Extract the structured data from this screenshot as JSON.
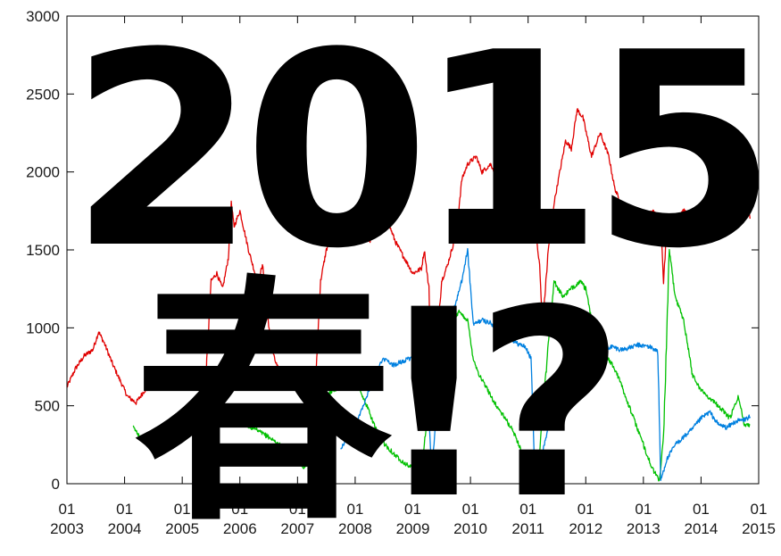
{
  "headline": {
    "line1": "2015",
    "line2": "春!?"
  },
  "chart_data": {
    "type": "line",
    "xlabel": "",
    "ylabel": "",
    "xlim": [
      2003.0,
      2015.0
    ],
    "ylim": [
      0,
      3000
    ],
    "y_ticks": [
      0,
      500,
      1000,
      1500,
      2000,
      2500,
      3000
    ],
    "x_ticks": [
      {
        "value": 2003,
        "label": "01\n2003"
      },
      {
        "value": 2004,
        "label": "01\n2004"
      },
      {
        "value": 2005,
        "label": "01\n2005"
      },
      {
        "value": 2006,
        "label": "01\n2006"
      },
      {
        "value": 2007,
        "label": "01\n2007"
      },
      {
        "value": 2008,
        "label": "01\n2008"
      },
      {
        "value": 2009,
        "label": "01\n2009"
      },
      {
        "value": 2010,
        "label": "01\n2010"
      },
      {
        "value": 2011,
        "label": "01\n2011"
      },
      {
        "value": 2012,
        "label": "01\n2012"
      },
      {
        "value": 2013,
        "label": "01\n2013"
      },
      {
        "value": 2014,
        "label": "01\n2014"
      },
      {
        "value": 2015,
        "label": "01\n2015"
      }
    ],
    "grid": false,
    "legend": "none",
    "series": [
      {
        "color": "#e00000",
        "points": [
          [
            2003.0,
            620
          ],
          [
            2003.15,
            740
          ],
          [
            2003.3,
            820
          ],
          [
            2003.45,
            860
          ],
          [
            2003.55,
            975
          ],
          [
            2003.65,
            900
          ],
          [
            2003.8,
            760
          ],
          [
            2003.95,
            640
          ],
          [
            2004.05,
            560
          ],
          [
            2004.2,
            520
          ],
          [
            2004.35,
            600
          ],
          [
            2004.5,
            620
          ],
          [
            2004.65,
            640
          ],
          [
            2004.8,
            700
          ],
          [
            2004.95,
            680
          ],
          [
            2005.1,
            660
          ],
          [
            2005.25,
            640
          ],
          [
            2005.4,
            600
          ],
          [
            2005.5,
            1300
          ],
          [
            2005.6,
            1350
          ],
          [
            2005.7,
            1250
          ],
          [
            2005.8,
            1450
          ],
          [
            2005.85,
            1800
          ],
          [
            2005.9,
            1650
          ],
          [
            2006.0,
            1750
          ],
          [
            2006.15,
            1500
          ],
          [
            2006.3,
            1300
          ],
          [
            2006.4,
            1400
          ],
          [
            2006.5,
            1000
          ],
          [
            2006.6,
            800
          ],
          [
            2006.75,
            650
          ],
          [
            2006.9,
            620
          ],
          [
            2007.05,
            600
          ],
          [
            2007.2,
            550
          ],
          [
            2007.3,
            560
          ],
          [
            2007.4,
            1300
          ],
          [
            2007.5,
            1500
          ],
          [
            2007.6,
            1600
          ],
          [
            2007.7,
            1650
          ],
          [
            2007.85,
            1620
          ],
          [
            2008.0,
            1600
          ],
          [
            2008.1,
            1680
          ],
          [
            2008.25,
            1550
          ],
          [
            2008.4,
            1750
          ],
          [
            2008.55,
            1700
          ],
          [
            2008.7,
            1550
          ],
          [
            2008.85,
            1450
          ],
          [
            2009.0,
            1350
          ],
          [
            2009.15,
            1380
          ],
          [
            2009.2,
            1500
          ],
          [
            2009.28,
            1250
          ],
          [
            2009.32,
            720
          ],
          [
            2009.38,
            760
          ],
          [
            2009.5,
            1300
          ],
          [
            2009.6,
            1400
          ],
          [
            2009.75,
            1600
          ],
          [
            2009.85,
            1950
          ],
          [
            2009.95,
            2050
          ],
          [
            2010.1,
            2100
          ],
          [
            2010.2,
            2000
          ],
          [
            2010.35,
            2050
          ],
          [
            2010.5,
            1950
          ],
          [
            2010.65,
            1880
          ],
          [
            2010.8,
            1800
          ],
          [
            2010.95,
            1700
          ],
          [
            2011.05,
            1600
          ],
          [
            2011.15,
            1550
          ],
          [
            2011.2,
            1400
          ],
          [
            2011.25,
            1000
          ],
          [
            2011.35,
            1500
          ],
          [
            2011.45,
            1800
          ],
          [
            2011.55,
            2000
          ],
          [
            2011.65,
            2200
          ],
          [
            2011.75,
            2150
          ],
          [
            2011.85,
            2400
          ],
          [
            2011.95,
            2350
          ],
          [
            2012.1,
            2100
          ],
          [
            2012.25,
            2250
          ],
          [
            2012.4,
            2100
          ],
          [
            2012.5,
            1900
          ],
          [
            2012.6,
            1800
          ],
          [
            2012.7,
            1750
          ],
          [
            2012.85,
            1650
          ],
          [
            2013.0,
            1700
          ],
          [
            2013.15,
            1750
          ],
          [
            2013.3,
            1700
          ],
          [
            2013.35,
            1300
          ],
          [
            2013.4,
            1600
          ],
          [
            2013.5,
            1700
          ],
          [
            2013.7,
            1750
          ],
          [
            2013.9,
            1700
          ],
          [
            2014.05,
            1750
          ],
          [
            2014.2,
            1800
          ],
          [
            2014.35,
            1600
          ],
          [
            2014.5,
            1650
          ],
          [
            2014.6,
            1750
          ],
          [
            2014.7,
            1900
          ],
          [
            2014.8,
            1800
          ],
          [
            2014.85,
            1700
          ]
        ]
      },
      {
        "color": "#00c000",
        "points": [
          [
            2004.15,
            360
          ],
          [
            2004.3,
            290
          ],
          [
            2004.45,
            240
          ],
          [
            2004.6,
            290
          ],
          [
            2004.75,
            230
          ],
          [
            2004.9,
            260
          ],
          [
            2005.1,
            330
          ],
          [
            2005.3,
            380
          ],
          [
            2005.5,
            420
          ],
          [
            2005.7,
            440
          ],
          [
            2005.9,
            400
          ],
          [
            2006.1,
            380
          ],
          [
            2006.3,
            340
          ],
          [
            2006.5,
            300
          ],
          [
            2006.65,
            260
          ],
          [
            2006.8,
            220
          ],
          [
            2006.95,
            170
          ],
          [
            2007.1,
            110
          ],
          [
            2007.2,
            130
          ],
          [
            2007.3,
            400
          ],
          [
            2007.45,
            520
          ],
          [
            2007.6,
            600
          ],
          [
            2007.75,
            620
          ],
          [
            2007.9,
            640
          ],
          [
            2008.05,
            620
          ],
          [
            2008.2,
            500
          ],
          [
            2008.35,
            360
          ],
          [
            2008.5,
            260
          ],
          [
            2008.7,
            180
          ],
          [
            2008.9,
            120
          ],
          [
            2009.05,
            100
          ],
          [
            2009.15,
            90
          ],
          [
            2009.25,
            420
          ],
          [
            2009.35,
            620
          ],
          [
            2009.5,
            900
          ],
          [
            2009.65,
            1000
          ],
          [
            2009.8,
            1100
          ],
          [
            2009.95,
            1050
          ],
          [
            2010.05,
            800
          ],
          [
            2010.15,
            700
          ],
          [
            2010.3,
            600
          ],
          [
            2010.45,
            500
          ],
          [
            2010.6,
            420
          ],
          [
            2010.75,
            330
          ],
          [
            2010.9,
            200
          ],
          [
            2011.0,
            100
          ],
          [
            2011.1,
            20
          ],
          [
            2011.2,
            200
          ],
          [
            2011.35,
            900
          ],
          [
            2011.45,
            1300
          ],
          [
            2011.6,
            1200
          ],
          [
            2011.75,
            1250
          ],
          [
            2011.9,
            1300
          ],
          [
            2012.0,
            1250
          ],
          [
            2012.1,
            1050
          ],
          [
            2012.25,
            900
          ],
          [
            2012.4,
            800
          ],
          [
            2012.55,
            700
          ],
          [
            2012.7,
            550
          ],
          [
            2012.85,
            400
          ],
          [
            2013.0,
            250
          ],
          [
            2013.15,
            100
          ],
          [
            2013.28,
            20
          ],
          [
            2013.35,
            300
          ],
          [
            2013.45,
            1500
          ],
          [
            2013.55,
            1200
          ],
          [
            2013.7,
            1050
          ],
          [
            2013.85,
            700
          ],
          [
            2014.0,
            600
          ],
          [
            2014.15,
            550
          ],
          [
            2014.3,
            500
          ],
          [
            2014.5,
            420
          ],
          [
            2014.65,
            560
          ],
          [
            2014.75,
            380
          ],
          [
            2014.85,
            380
          ]
        ]
      },
      {
        "color": "#0080e0",
        "points": [
          [
            2007.75,
            230
          ],
          [
            2007.9,
            300
          ],
          [
            2008.05,
            420
          ],
          [
            2008.2,
            560
          ],
          [
            2008.35,
            720
          ],
          [
            2008.5,
            800
          ],
          [
            2008.65,
            760
          ],
          [
            2008.8,
            780
          ],
          [
            2009.0,
            810
          ],
          [
            2009.15,
            830
          ],
          [
            2009.25,
            700
          ],
          [
            2009.32,
            100
          ],
          [
            2009.4,
            380
          ],
          [
            2009.55,
            720
          ],
          [
            2009.7,
            1100
          ],
          [
            2009.85,
            1300
          ],
          [
            2009.95,
            1500
          ],
          [
            2010.05,
            1020
          ],
          [
            2010.2,
            1050
          ],
          [
            2010.35,
            1030
          ],
          [
            2010.5,
            950
          ],
          [
            2010.65,
            950
          ],
          [
            2010.8,
            900
          ],
          [
            2010.95,
            880
          ],
          [
            2011.05,
            800
          ],
          [
            2011.12,
            50
          ],
          [
            2011.25,
            200
          ],
          [
            2011.4,
            450
          ],
          [
            2011.55,
            580
          ],
          [
            2011.7,
            620
          ],
          [
            2011.85,
            700
          ],
          [
            2012.0,
            800
          ],
          [
            2012.15,
            830
          ],
          [
            2012.3,
            860
          ],
          [
            2012.45,
            880
          ],
          [
            2012.6,
            860
          ],
          [
            2012.75,
            870
          ],
          [
            2012.9,
            890
          ],
          [
            2013.1,
            880
          ],
          [
            2013.25,
            850
          ],
          [
            2013.3,
            20
          ],
          [
            2013.4,
            150
          ],
          [
            2013.55,
            250
          ],
          [
            2013.7,
            300
          ],
          [
            2013.85,
            350
          ],
          [
            2014.0,
            420
          ],
          [
            2014.15,
            460
          ],
          [
            2014.3,
            380
          ],
          [
            2014.45,
            360
          ],
          [
            2014.6,
            400
          ],
          [
            2014.75,
            410
          ],
          [
            2014.85,
            430
          ]
        ]
      }
    ]
  }
}
